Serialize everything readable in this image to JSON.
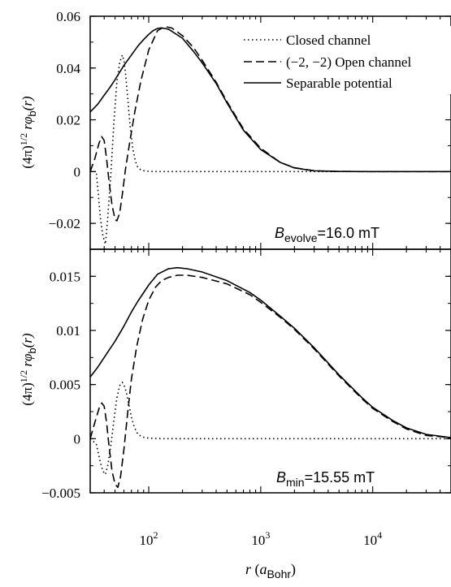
{
  "chart_data": {
    "type": "line",
    "xlabel": {
      "var": "r",
      "open": " (",
      "sym": "a",
      "sub": "Bohr",
      "close": ")"
    },
    "x_scale": "log",
    "xlim": [
      30,
      50000
    ],
    "x_ticks": [
      {
        "value": 100,
        "base": "10",
        "exp": "2"
      },
      {
        "value": 1000,
        "base": "10",
        "exp": "3"
      },
      {
        "value": 10000,
        "base": "10",
        "exp": "4"
      }
    ],
    "legend": {
      "placement": "top-right",
      "entries": [
        {
          "label": "Closed channel",
          "style": "dotted"
        },
        {
          "label": "(−2, −2) Open channel",
          "style": "dashed"
        },
        {
          "label": "Separable potential",
          "style": "solid"
        }
      ]
    },
    "panels": [
      {
        "id": "top",
        "ylabel": {
          "pre": "(4π)",
          "sup": "1/2",
          "mid": " rφ",
          "sub": "b",
          "post": "(r)"
        },
        "ylim": [
          -0.03,
          0.06
        ],
        "y_ticks": [
          "0.06",
          "0.04",
          "0.02",
          "0",
          "−0.02"
        ],
        "y_tick_values": [
          0.06,
          0.04,
          0.02,
          0,
          -0.02
        ],
        "annotation": {
          "sym": "B",
          "sub": "evolve",
          "value": "=16.0 mT"
        },
        "series": [
          {
            "name": "Closed channel",
            "style": "dotted",
            "x": [
              30,
              34,
              37,
              39,
              41,
              43,
              46,
              49,
              52,
              55,
              58,
              60,
              62,
              65,
              68,
              72,
              76,
              80,
              86,
              93,
              100,
              115,
              150,
              300,
              1000,
              3000,
              10000,
              50000
            ],
            "y": [
              0,
              0.0,
              -0.018,
              -0.025,
              -0.028,
              -0.018,
              0.0,
              0.02,
              0.035,
              0.042,
              0.045,
              0.043,
              0.038,
              0.028,
              0.018,
              0.009,
              0.004,
              0.0015,
              0.0005,
              0.0002,
              0.0001,
              0,
              0,
              0,
              0,
              0,
              0,
              0
            ]
          },
          {
            "name": "(−2, −2) Open channel",
            "style": "dashed",
            "x": [
              30,
              33,
              36,
              38,
              40,
              42,
              44,
              47,
              50,
              52,
              55,
              58,
              62,
              68,
              75,
              85,
              100,
              120,
              140,
              160,
              200,
              250,
              300,
              400,
              500,
              700,
              1000,
              1500,
              2000,
              3000,
              5000,
              10000,
              20000,
              50000
            ],
            "y": [
              0,
              0.005,
              0.011,
              0.0135,
              0.012,
              0.005,
              -0.003,
              -0.013,
              -0.0185,
              -0.019,
              -0.016,
              -0.009,
              0.001,
              0.012,
              0.023,
              0.035,
              0.047,
              0.0545,
              0.056,
              0.0555,
              0.0525,
              0.048,
              0.043,
              0.0345,
              0.027,
              0.0165,
              0.009,
              0.0035,
              0.0015,
              0.0003,
              5e-05,
              0,
              0,
              0
            ]
          },
          {
            "name": "Separable potential",
            "style": "solid",
            "x": [
              30,
              35,
              40,
              45,
              50,
              60,
              70,
              80,
              90,
              100,
              110,
              120,
              130,
              150,
              200,
              250,
              300,
              400,
              500,
              700,
              1000,
              1500,
              2000,
              3000,
              5000,
              10000,
              20000,
              50000
            ],
            "y": [
              0.023,
              0.026,
              0.0295,
              0.0325,
              0.0355,
              0.041,
              0.045,
              0.0485,
              0.051,
              0.053,
              0.0545,
              0.0553,
              0.0555,
              0.055,
              0.0515,
              0.0465,
              0.042,
              0.034,
              0.0265,
              0.016,
              0.0085,
              0.0035,
              0.0014,
              0.0003,
              5e-05,
              0,
              0,
              0
            ]
          }
        ]
      },
      {
        "id": "bottom",
        "ylabel": {
          "pre": "(4π)",
          "sup": "1/2",
          "mid": " rφ",
          "sub": "b",
          "post": "(r)"
        },
        "ylim": [
          -0.005,
          0.0175
        ],
        "y_ticks": [
          "0.015",
          "0.01",
          "0.005",
          "0",
          "−0.005"
        ],
        "y_tick_values": [
          0.015,
          0.01,
          0.005,
          0,
          -0.005
        ],
        "annotation": {
          "sym": "B",
          "sub": "min",
          "value": "=15.55 mT"
        },
        "series": [
          {
            "name": "Closed channel",
            "style": "dotted",
            "x": [
              30,
              34,
              37,
              39,
              41,
              43,
              46,
              49,
              52,
              55,
              58,
              60,
              63,
              66,
              70,
              74,
              80,
              88,
              100,
              130,
              300,
              1000,
              10000,
              50000
            ],
            "y": [
              0,
              -0.0005,
              -0.0022,
              -0.003,
              -0.0033,
              -0.0025,
              -0.0005,
              0.0018,
              0.0038,
              0.0049,
              0.0052,
              0.005,
              0.0043,
              0.0033,
              0.002,
              0.0011,
              0.0004,
              0.00015,
              5e-05,
              0,
              0,
              0,
              0,
              0
            ]
          },
          {
            "name": "(−2, −2) Open channel",
            "style": "dashed",
            "x": [
              30,
              33,
              36,
              38,
              40,
              42,
              44,
              47,
              50,
              53,
              56,
              60,
              65,
              70,
              78,
              88,
              100,
              115,
              130,
              150,
              180,
              220,
              300,
              500,
              800,
              1000,
              1500,
              2000,
              3000,
              5000,
              8000,
              10000,
              15000,
              20000,
              30000,
              50000
            ],
            "y": [
              0,
              0.0015,
              0.0028,
              0.0033,
              0.003,
              0.0015,
              -0.0005,
              -0.003,
              -0.0042,
              -0.0045,
              -0.0035,
              -0.001,
              0.0025,
              0.0055,
              0.0085,
              0.011,
              0.0128,
              0.014,
              0.0146,
              0.0149,
              0.0151,
              0.0151,
              0.0149,
              0.0143,
              0.0133,
              0.0126,
              0.0112,
              0.0101,
              0.0083,
              0.0058,
              0.0037,
              0.0028,
              0.0016,
              0.0009,
              0.0003,
              0.0001
            ]
          },
          {
            "name": "Separable potential",
            "style": "solid",
            "x": [
              30,
              35,
              40,
              45,
              50,
              60,
              70,
              80,
              100,
              120,
              150,
              180,
              220,
              300,
              500,
              800,
              1000,
              1500,
              2000,
              3000,
              5000,
              8000,
              10000,
              15000,
              20000,
              30000,
              50000
            ],
            "y": [
              0.0057,
              0.0066,
              0.0075,
              0.0083,
              0.009,
              0.0104,
              0.0117,
              0.0127,
              0.0142,
              0.0152,
              0.0157,
              0.0158,
              0.0157,
              0.0154,
              0.0146,
              0.0135,
              0.0128,
              0.0113,
              0.0102,
              0.0084,
              0.0059,
              0.0038,
              0.0029,
              0.0017,
              0.001,
              0.0004,
              0.0001
            ]
          }
        ]
      }
    ]
  }
}
